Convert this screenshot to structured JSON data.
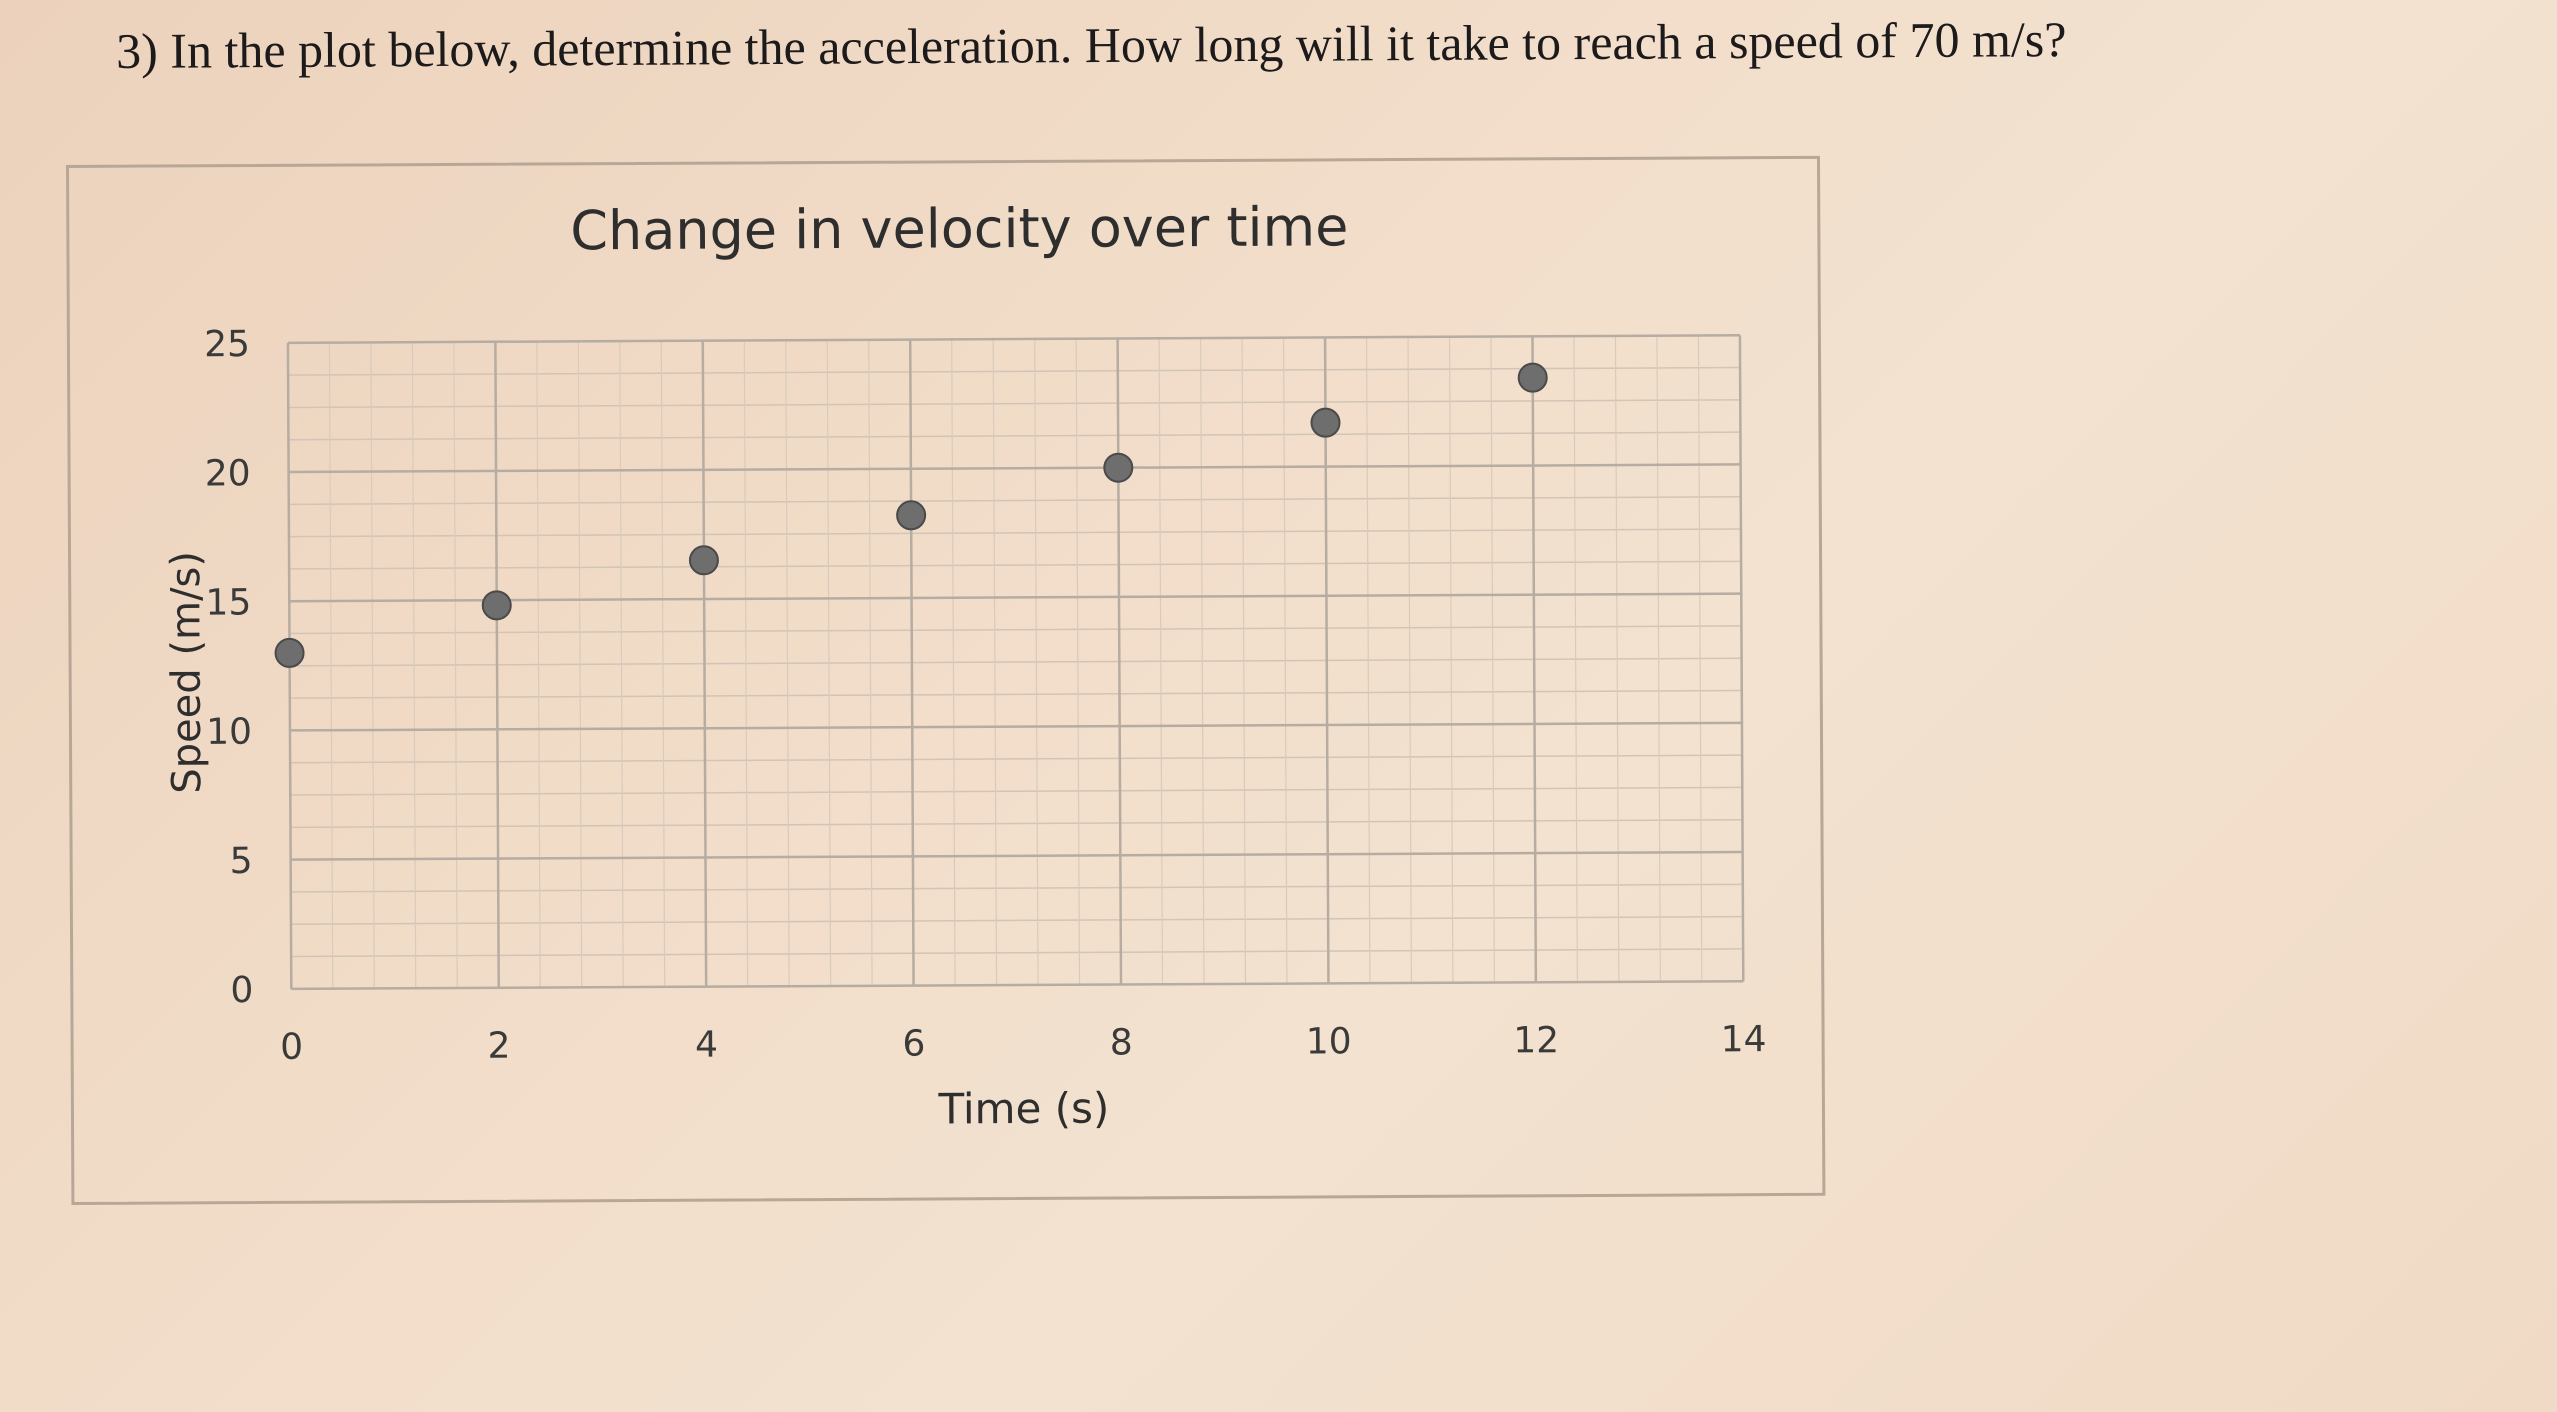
{
  "question": {
    "text": "3) In the plot below, determine the acceleration.  How long will it take to reach a speed of 70 m/s?"
  },
  "chart_data": {
    "type": "scatter",
    "title": "Change in velocity over time",
    "xlabel": "Time (s)",
    "ylabel": "Speed (m/s)",
    "xlim": [
      0,
      14
    ],
    "ylim": [
      0,
      25
    ],
    "x_ticks": [
      0,
      2,
      4,
      6,
      8,
      10,
      12,
      14
    ],
    "y_ticks": [
      0,
      5,
      10,
      15,
      20,
      25
    ],
    "x_tick_labels": [
      "0",
      "2",
      "4",
      "6",
      "8",
      "10",
      "12",
      "14"
    ],
    "y_tick_labels": [
      "0",
      "5",
      "10",
      "15",
      "20",
      "25"
    ],
    "grid": true,
    "legend": "none",
    "series": [
      {
        "x": [
          0,
          2,
          4,
          6,
          8,
          10,
          12
        ],
        "y": [
          13,
          14.8,
          16.5,
          18.2,
          20,
          21.7,
          23.4
        ]
      }
    ],
    "colors": {
      "marker": "#6e6e6e",
      "marker_edge": "#4a4a4a",
      "gridline": "#b6aca1",
      "axis_text": "#3a3a3a"
    }
  }
}
